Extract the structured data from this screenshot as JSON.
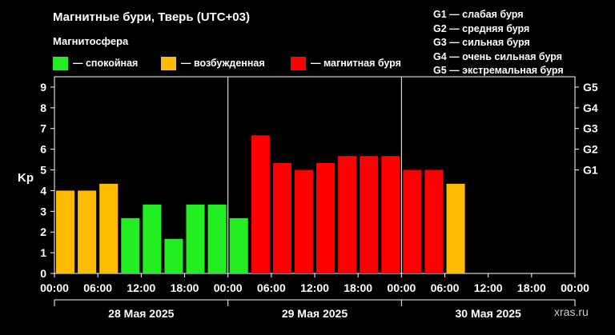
{
  "title": "Магнитные бури, Тверь (UTC+03)",
  "magnetosphere_title": "Магнитосфера",
  "legend": [
    {
      "label": "— спокойная",
      "color": "#22ee22"
    },
    {
      "label": "— возбужденная",
      "color": "#ffbb00"
    },
    {
      "label": "— магнитная буря",
      "color": "#ff0000"
    }
  ],
  "g_levels": [
    "G1 — слабая буря",
    "G2 — средняя буря",
    "G3 — сильная буря",
    "G4 — очень сильная буря",
    "G5 — экстремальная буря"
  ],
  "watermark": "xras.ru",
  "chart_data": {
    "type": "bar",
    "ylabel": "Kp",
    "ylim": [
      0,
      9.5
    ],
    "y_ticks": [
      0,
      1,
      2,
      3,
      4,
      5,
      6,
      7,
      8,
      9
    ],
    "right_axis_ticks": [
      {
        "label": "G1",
        "value": 5
      },
      {
        "label": "G2",
        "value": 6
      },
      {
        "label": "G3",
        "value": 7
      },
      {
        "label": "G4",
        "value": 8
      },
      {
        "label": "G5",
        "value": 9
      }
    ],
    "x_tick_labels": [
      "00:00",
      "06:00",
      "12:00",
      "18:00",
      "00:00",
      "06:00",
      "12:00",
      "18:00",
      "00:00",
      "06:00",
      "12:00",
      "18:00",
      "00:00"
    ],
    "days": [
      "28 Мая 2025",
      "29 Мая 2025",
      "30 Мая 2025"
    ],
    "interval_hours": 3,
    "slots": 24,
    "values": [
      4.0,
      4.0,
      4.33,
      2.67,
      3.33,
      1.67,
      3.33,
      3.33,
      2.67,
      6.67,
      5.33,
      5.0,
      5.33,
      5.67,
      5.67,
      5.67,
      5.0,
      5.0,
      4.33
    ],
    "colors": {
      "quiet": "#22ee22",
      "active": "#ffbb00",
      "storm": "#ff0000"
    },
    "grid": false
  }
}
